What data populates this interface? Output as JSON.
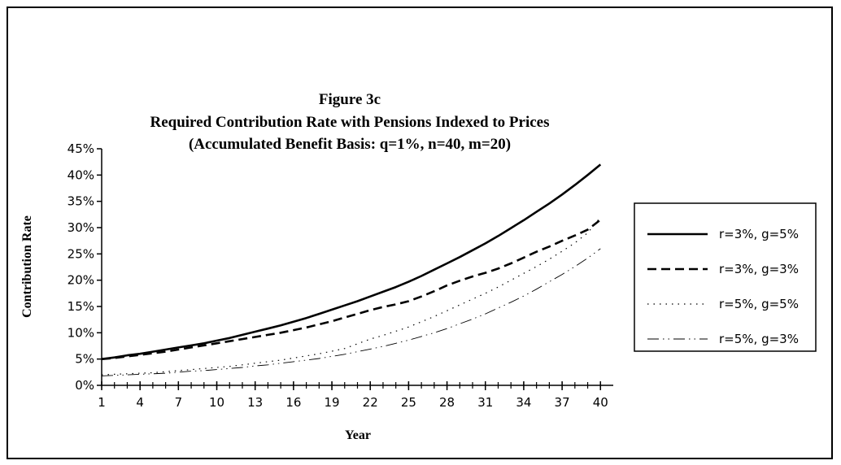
{
  "chart_data": {
    "type": "line",
    "title": "Figure 3c",
    "subtitle": [
      "Required Contribution Rate with Pensions Indexed to Prices",
      "(Accumulated Benefit Basis: q=1%, n=40, m=20)"
    ],
    "x_label": "Year",
    "y_label": "Contribution Rate",
    "x": [
      1,
      2,
      3,
      4,
      5,
      6,
      7,
      8,
      9,
      10,
      11,
      12,
      13,
      14,
      15,
      16,
      17,
      18,
      19,
      20,
      21,
      22,
      23,
      24,
      25,
      26,
      27,
      28,
      29,
      30,
      31,
      32,
      33,
      34,
      35,
      36,
      37,
      38,
      39,
      40
    ],
    "xlim": [
      1,
      41
    ],
    "xticks": [
      1,
      4,
      7,
      10,
      13,
      16,
      19,
      22,
      25,
      28,
      31,
      34,
      37,
      40
    ],
    "ylim": [
      0,
      45
    ],
    "yticks": [
      {
        "value": 0,
        "label": "0%"
      },
      {
        "value": 5,
        "label": "5%"
      },
      {
        "value": 10,
        "label": "10%"
      },
      {
        "value": 15,
        "label": "15%"
      },
      {
        "value": 20,
        "label": "20%"
      },
      {
        "value": 25,
        "label": "25%"
      },
      {
        "value": 30,
        "label": "30%"
      },
      {
        "value": 35,
        "label": "35%"
      },
      {
        "value": 40,
        "label": "40%"
      },
      {
        "value": 45,
        "label": "45%"
      }
    ],
    "legend": "right",
    "series": [
      {
        "name": "r=3%, g=5%",
        "color": "#000000",
        "dash": "solid",
        "values": [
          5.0,
          5.3,
          5.7,
          6.0,
          6.4,
          6.8,
          7.2,
          7.6,
          8.0,
          8.5,
          9.0,
          9.6,
          10.2,
          10.8,
          11.4,
          12.1,
          12.8,
          13.6,
          14.4,
          15.2,
          16.0,
          16.9,
          17.8,
          18.7,
          19.7,
          20.8,
          22.0,
          23.2,
          24.4,
          25.7,
          27.0,
          28.4,
          29.9,
          31.4,
          33.0,
          34.6,
          36.3,
          38.1,
          40.0,
          42.0
        ]
      },
      {
        "name": "r=3%, g=3%",
        "color": "#000000",
        "dash": "dash",
        "values": [
          5.0,
          5.2,
          5.5,
          5.8,
          6.1,
          6.4,
          6.8,
          7.2,
          7.6,
          8.0,
          8.4,
          8.8,
          9.2,
          9.6,
          10.0,
          10.5,
          11.0,
          11.6,
          12.2,
          12.9,
          13.6,
          14.3,
          14.9,
          15.4,
          16.0,
          16.9,
          17.9,
          19.0,
          19.9,
          20.7,
          21.4,
          22.2,
          23.2,
          24.3,
          25.4,
          26.4,
          27.5,
          28.5,
          29.6,
          31.5
        ]
      },
      {
        "name": "r=5%, g=5%",
        "color": "#000000",
        "dash": "dot",
        "values": [
          2.0,
          2.1,
          2.2,
          2.3,
          2.4,
          2.6,
          2.8,
          3.0,
          3.2,
          3.4,
          3.6,
          3.9,
          4.2,
          4.5,
          4.8,
          5.2,
          5.6,
          6.0,
          6.5,
          7.0,
          7.9,
          8.8,
          9.5,
          10.3,
          11.1,
          12.1,
          13.1,
          14.2,
          15.3,
          16.4,
          17.5,
          18.7,
          20.0,
          21.3,
          22.6,
          24.0,
          25.5,
          27.1,
          29.0,
          32.0
        ]
      },
      {
        "name": "r=5%, g=3%",
        "color": "#000000",
        "dash": "dashdot",
        "values": [
          1.8,
          1.9,
          2.0,
          2.1,
          2.2,
          2.3,
          2.5,
          2.7,
          2.8,
          3.0,
          3.2,
          3.4,
          3.7,
          3.9,
          4.2,
          4.5,
          4.8,
          5.1,
          5.5,
          5.9,
          6.4,
          6.9,
          7.4,
          8.0,
          8.6,
          9.3,
          10.0,
          10.8,
          11.7,
          12.6,
          13.6,
          14.7,
          15.8,
          17.0,
          18.3,
          19.7,
          21.1,
          22.6,
          24.2,
          26.0
        ]
      }
    ]
  }
}
